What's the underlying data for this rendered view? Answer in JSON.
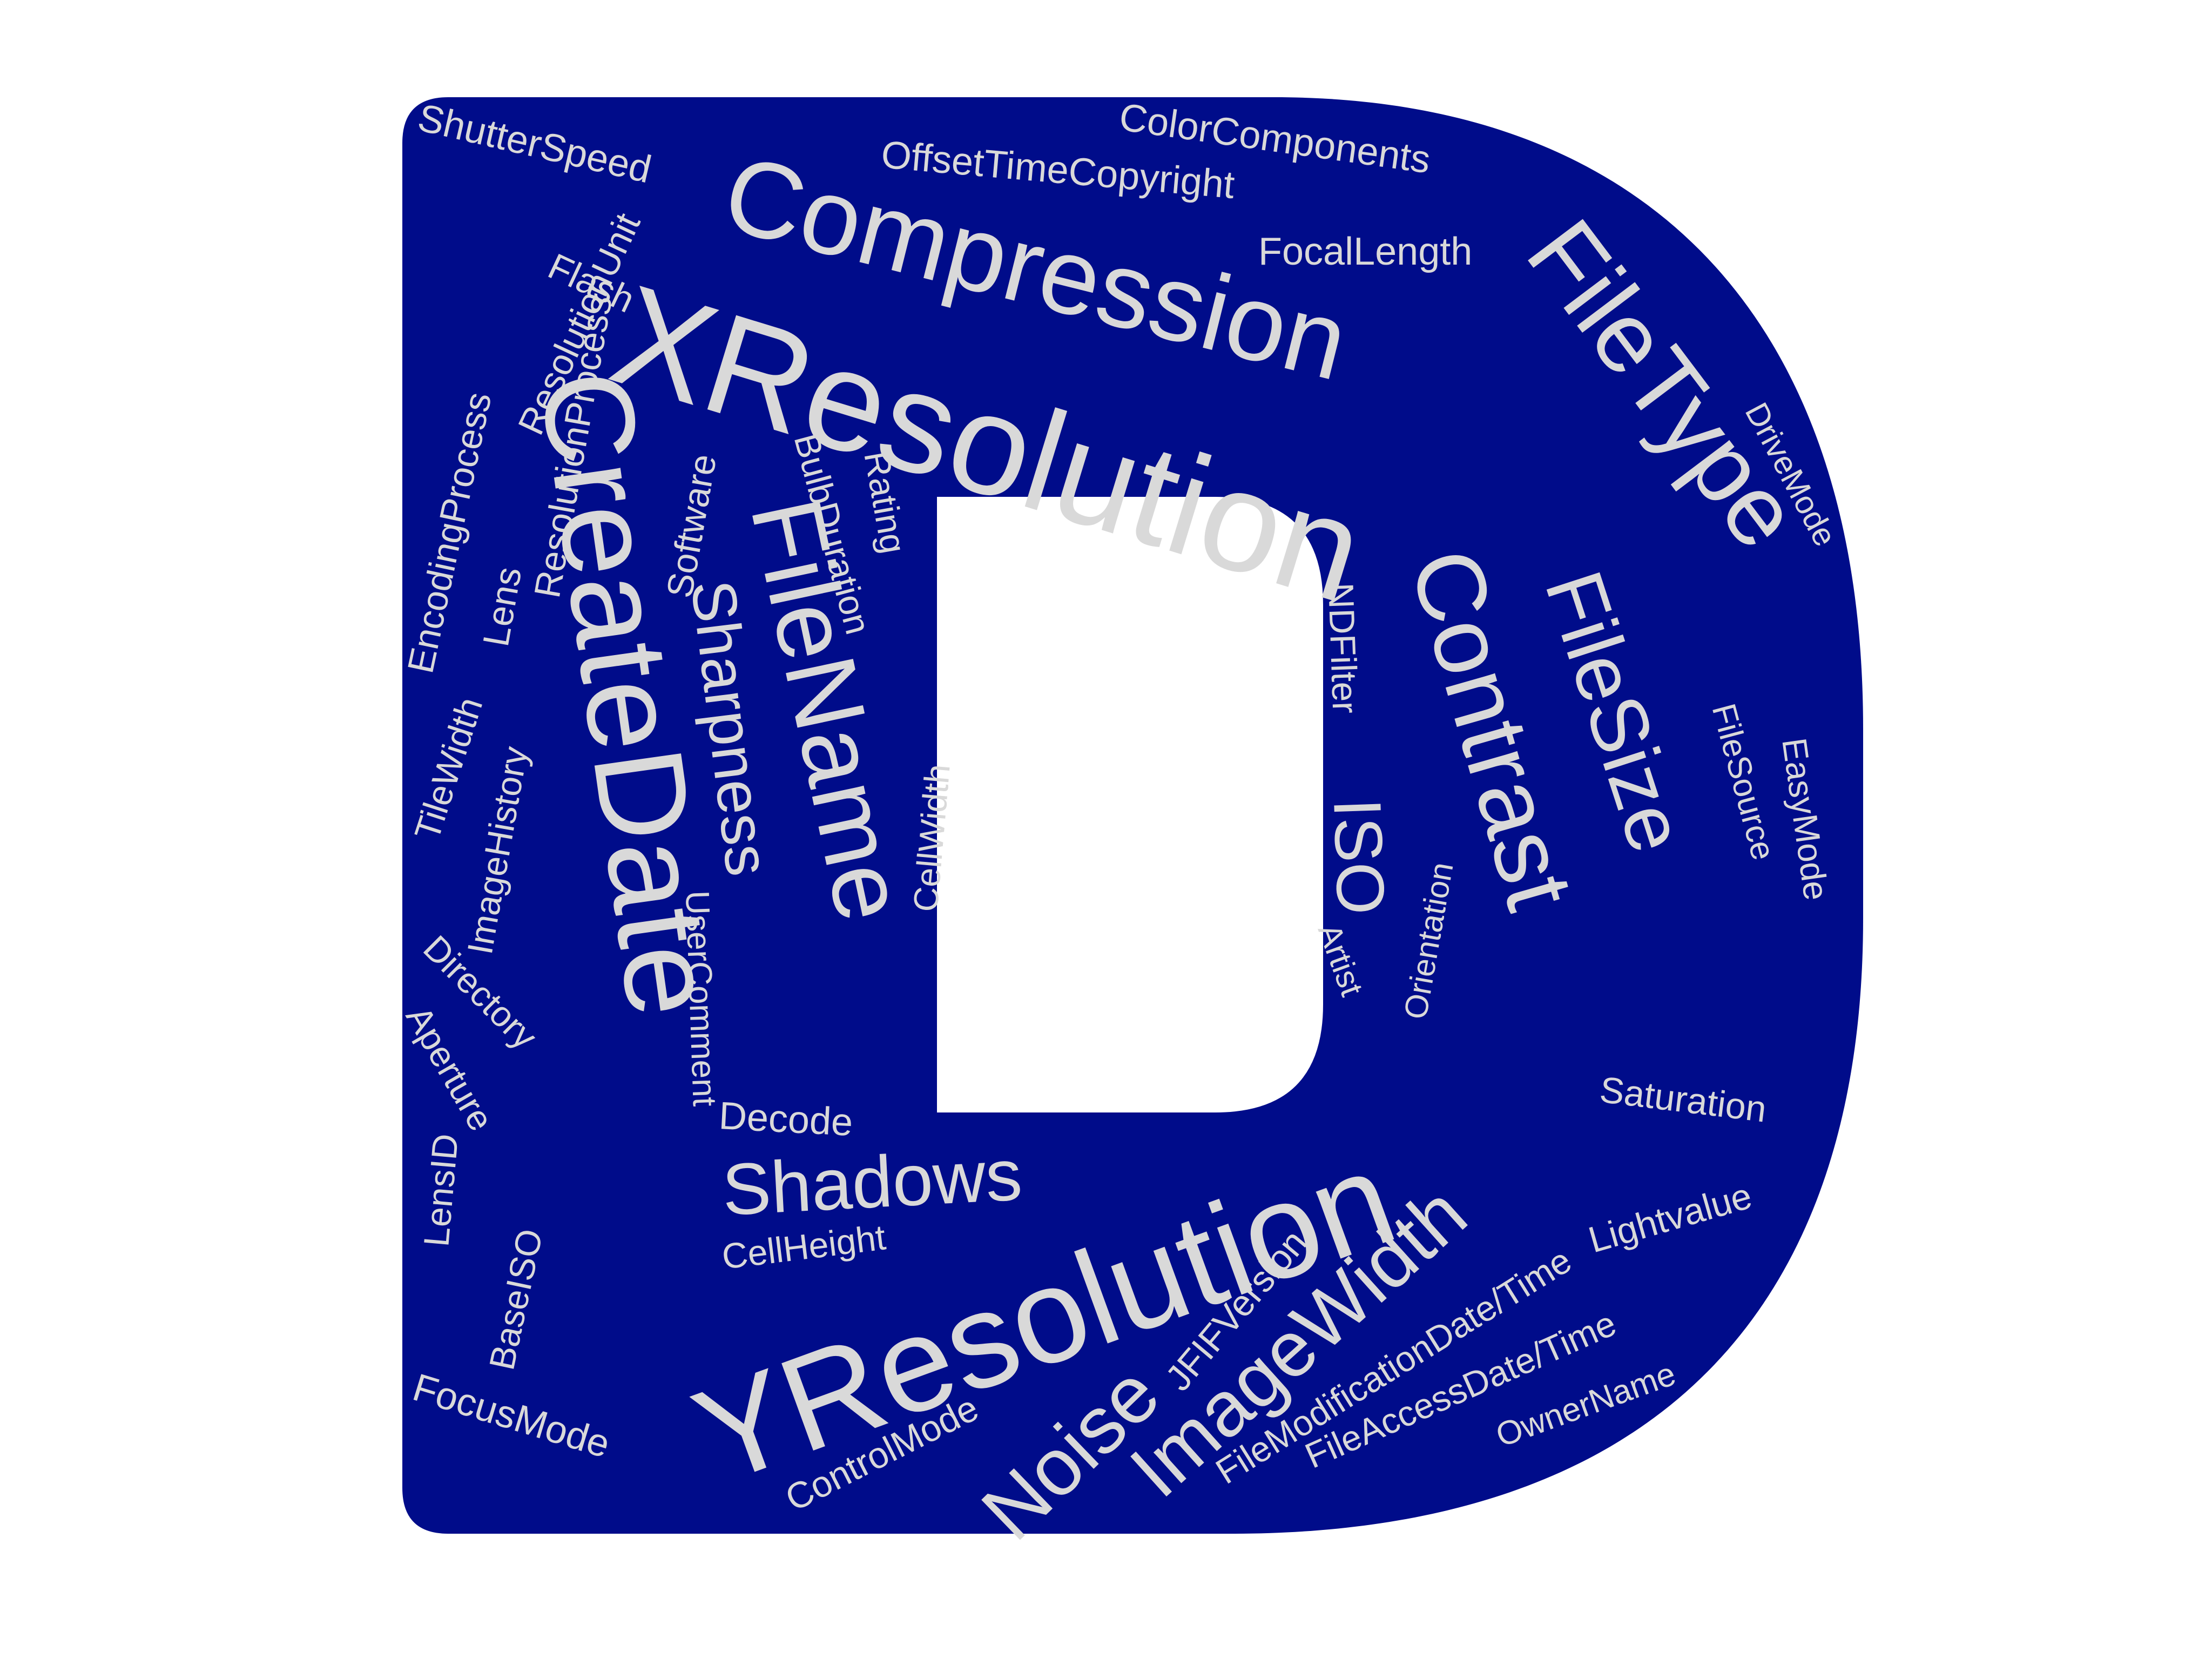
{
  "colors": {
    "letter_fill": "#000c8a",
    "word_fill": "#d9d9d9",
    "counter_fill": "#ffffff"
  },
  "words": {
    "xresolution": "XResolution",
    "yresolution": "YResolution",
    "createdate": "CreateDate",
    "compression": "Compression",
    "filetype": "FileType",
    "contrast": "Contrast",
    "filesize": "FileSize",
    "filename": "FileName",
    "sharpness": "Sharpness",
    "shadows": "Shadows",
    "imagewidth": "ImageWidth",
    "noise": "Noise",
    "iso": "ISO",
    "ndfilter": "NDFilter",
    "shutterspeed": "ShutterSpeed",
    "offsettimecopyright": "OffsetTimeCopyright",
    "colorcomponents": "ColorComponents",
    "focallength": "FocalLength",
    "resolutionunit": "ResolutionUnit",
    "flash": "Flash",
    "resolutionprocess": "ResolutionProcess",
    "encodingprocess": "EncodingProcess",
    "lens": "Lens",
    "software": "Software",
    "bulbduration": "BulbDuration",
    "rating": "Rating",
    "cellwidth": "CellWidth",
    "tilewidth": "TileWidth",
    "imagehistory": "ImageHistory",
    "usercomment": "UserComment",
    "directory": "Directory",
    "aperture": "Aperture",
    "lensid": "LensID",
    "baseiso": "BaseISO",
    "focusmode": "FocusMode",
    "decode": "Decode",
    "cellheight": "CellHeight",
    "controlmode": "ControlMode",
    "jfifversion": "JFIFVersion",
    "filemodificationdatetime": "FileModificationDate/Time",
    "fileaccessdatetime": "FileAccessDate/Time",
    "ownername": "OwnerName",
    "lightvalue": "Lightvalue",
    "saturation": "Saturation",
    "orientation": "Orientation",
    "artist": "Artist",
    "drivemode": "DriveMode",
    "filesource": "FileSource",
    "easymode": "EasyMode"
  }
}
